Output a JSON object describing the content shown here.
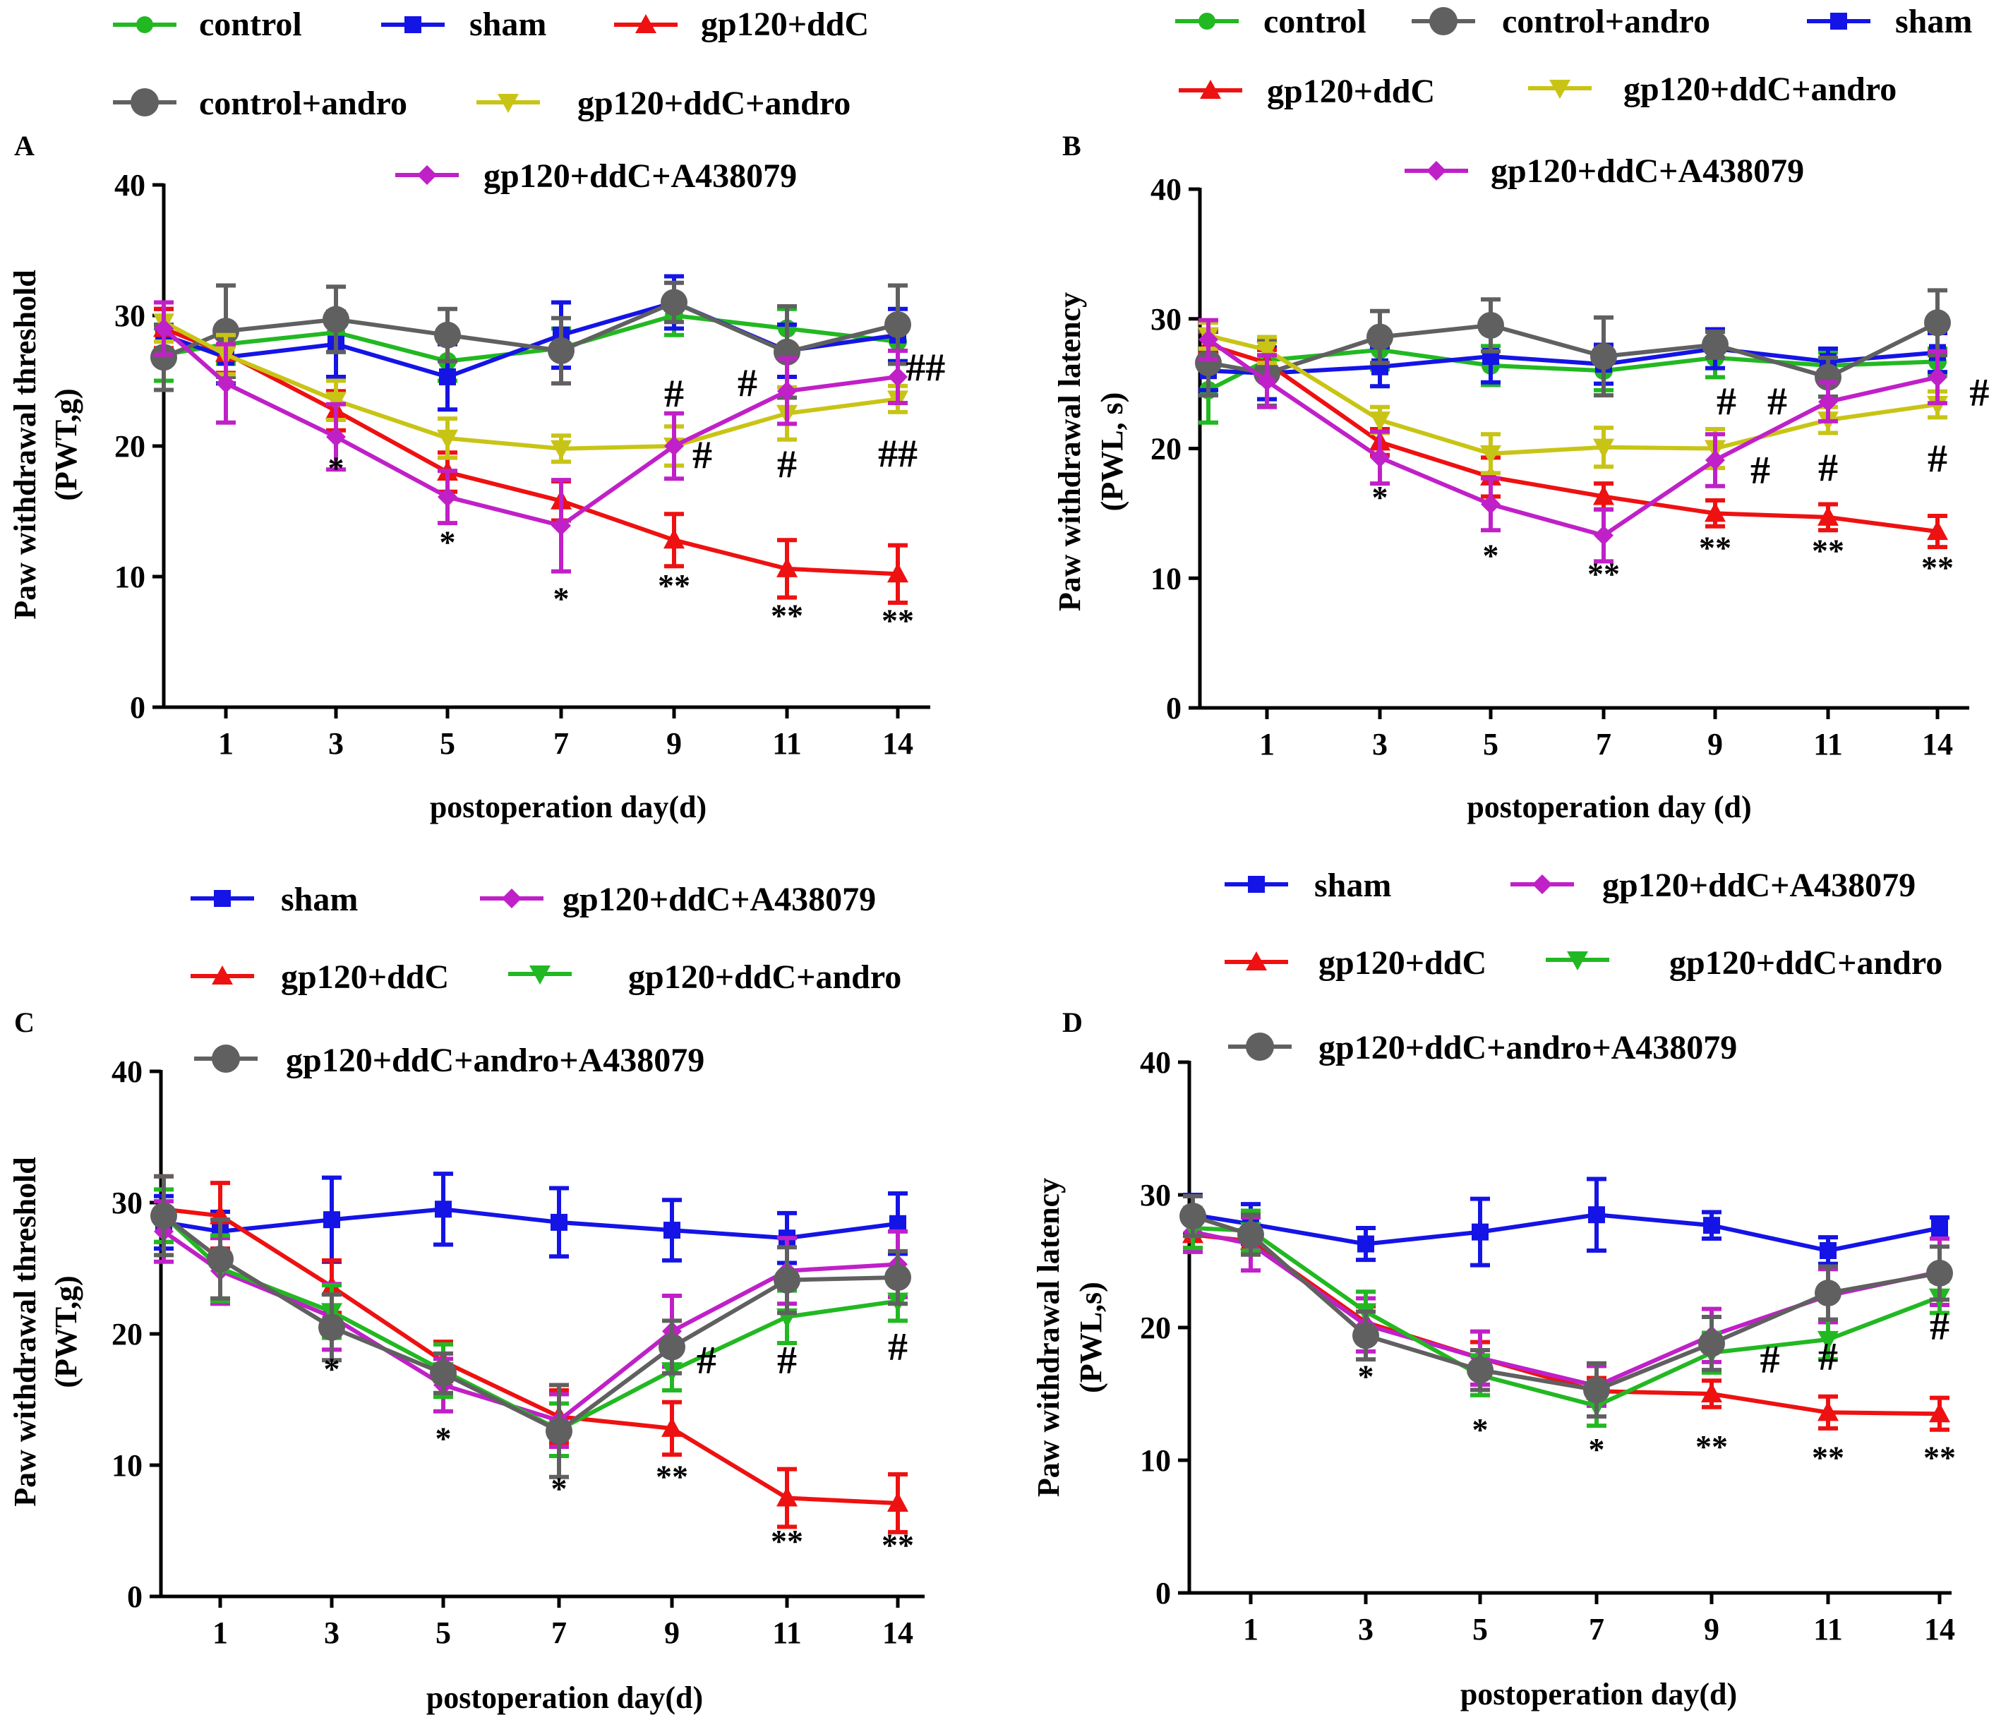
{
  "figure": {
    "colors": {
      "control": "#22b822",
      "sham": "#1414e6",
      "gp120+ddC": "#ee1111",
      "control+andro": "#606060",
      "gp120+ddC+andro": "#c8c416",
      "gp120+ddC+A438079": "#c020c8",
      "gp120+ddC+andro (C/D)": "#22b822",
      "gp120+ddC+andro+A438079": "#606060"
    }
  },
  "chart_data": [
    {
      "panel": "A",
      "type": "line",
      "title": "",
      "xlabel": "postoperation day(d)",
      "ylabel": "Paw withdrawal threshold",
      "ylabel2": "(PWT,g)",
      "x": [
        0,
        1,
        3,
        5,
        7,
        9,
        11,
        14
      ],
      "x_ticks": [
        "1",
        "3",
        "5",
        "7",
        "9",
        "11",
        "14"
      ],
      "ylim": [
        0,
        40
      ],
      "y_ticks": [
        "0",
        "10",
        "20",
        "30",
        "40"
      ],
      "legend": [
        "control",
        "sham",
        "gp120+ddC",
        "control+andro",
        "gp120+ddC+andro",
        "gp120+ddC+A438079"
      ],
      "series": [
        {
          "name": "control",
          "marker": "circle",
          "color": "#22b822",
          "values": [
            27,
            27.8,
            28.7,
            26.5,
            27.5,
            30,
            29,
            28
          ],
          "err": [
            2,
            1.5,
            1.5,
            1.5,
            1.5,
            1.5,
            1.5,
            1.5
          ]
        },
        {
          "name": "sham",
          "marker": "square",
          "color": "#1414e6",
          "values": [
            28.5,
            26.8,
            27.8,
            25.3,
            28.5,
            31,
            27.3,
            28.5
          ],
          "err": [
            2,
            2,
            2.5,
            2.5,
            2.5,
            2,
            2,
            2
          ]
        },
        {
          "name": "gp120+ddC",
          "marker": "triangle-up",
          "color": "#ee1111",
          "values": [
            29,
            27.1,
            22.7,
            18,
            15.8,
            12.8,
            10.6,
            10.2
          ],
          "err": [
            1.5,
            1.5,
            1.5,
            1.5,
            1.5,
            2,
            2.2,
            2.2
          ]
        },
        {
          "name": "control+andro",
          "marker": "circle-big",
          "color": "#606060",
          "values": [
            26.8,
            28.8,
            29.7,
            28.5,
            27.3,
            31,
            27.2,
            29.3
          ],
          "err": [
            2.5,
            3.5,
            2.5,
            2,
            2.5,
            1.5,
            3.5,
            3
          ]
        },
        {
          "name": "gp120+ddC+andro",
          "marker": "triangle-down",
          "color": "#c8c416",
          "values": [
            29.5,
            27,
            23.5,
            20.6,
            19.8,
            20,
            22.5,
            23.6
          ],
          "err": [
            1.5,
            1.5,
            1.5,
            1.5,
            1,
            1.5,
            2,
            1
          ]
        },
        {
          "name": "gp120+ddC+A438079",
          "marker": "diamond",
          "color": "#c020c8",
          "values": [
            29,
            24.8,
            20.7,
            16.1,
            13.9,
            20,
            24.2,
            25.3
          ],
          "err": [
            2,
            3,
            2.5,
            2,
            3.5,
            2.5,
            2.5,
            2
          ]
        }
      ],
      "annotations": [
        {
          "x": 3,
          "y": 17.5,
          "text": "*"
        },
        {
          "x": 5,
          "y": 11.8,
          "text": "*"
        },
        {
          "x": 7,
          "y": 7.5,
          "text": "*"
        },
        {
          "x": 9,
          "y": 8.5,
          "text": "**"
        },
        {
          "x": 11,
          "y": 6.2,
          "text": "**"
        },
        {
          "x": 14,
          "y": 5.8,
          "text": "**"
        },
        {
          "x": 9,
          "y": 23.0,
          "text": "#"
        },
        {
          "x": 9.5,
          "y": 18.3,
          "text": "#"
        },
        {
          "x": 10.3,
          "y": 23.8,
          "text": "#"
        },
        {
          "x": 11,
          "y": 17.6,
          "text": "#"
        },
        {
          "x": 14,
          "y": 18.4,
          "text": "##"
        },
        {
          "x": 14.75,
          "y": 25.0,
          "text": "##"
        }
      ]
    },
    {
      "panel": "B",
      "type": "line",
      "title": "",
      "xlabel": "postoperation day (d)",
      "ylabel": "Paw withdrawal latency",
      "ylabel2": "(PWL, s)",
      "x": [
        0,
        1,
        3,
        5,
        7,
        9,
        11,
        14
      ],
      "x_ticks": [
        "1",
        "3",
        "5",
        "7",
        "9",
        "11",
        "14"
      ],
      "ylim": [
        0,
        40
      ],
      "y_ticks": [
        "0",
        "10",
        "20",
        "30",
        "40"
      ],
      "legend": [
        "control",
        "control+andro",
        "sham",
        "gp120+ddC",
        "gp120+ddC+andro",
        "gp120+ddC+A438079"
      ],
      "series": [
        {
          "name": "control",
          "marker": "circle",
          "color": "#22b822",
          "values": [
            24.5,
            26.8,
            27.6,
            26.4,
            26,
            27,
            26.4,
            26.7
          ],
          "err": [
            2.5,
            1.5,
            1.5,
            1.5,
            1.5,
            1.5,
            1,
            1
          ]
        },
        {
          "name": "sham",
          "marker": "square",
          "color": "#1414e6",
          "values": [
            26,
            25.8,
            26.3,
            27.1,
            26.5,
            27.7,
            26.7,
            27.4
          ],
          "err": [
            1.5,
            2,
            1.5,
            2,
            1.5,
            1.5,
            1,
            1.5
          ]
        },
        {
          "name": "gp120+ddC",
          "marker": "triangle-up",
          "color": "#ee1111",
          "values": [
            28,
            26.6,
            20.5,
            17.8,
            16.3,
            15,
            14.7,
            13.6
          ],
          "err": [
            1,
            1,
            1,
            1.5,
            1,
            1,
            1,
            1.2
          ]
        },
        {
          "name": "control+andro",
          "marker": "circle-big",
          "color": "#606060",
          "values": [
            26.6,
            25.8,
            28.6,
            29.5,
            27.1,
            28,
            25.5,
            29.7
          ],
          "err": [
            2.5,
            2.5,
            2,
            2,
            3,
            1,
            1.5,
            2.5
          ]
        },
        {
          "name": "gp120+ddC+andro",
          "marker": "triangle-down",
          "color": "#c8c416",
          "values": [
            28.7,
            27.6,
            22.2,
            19.6,
            20.1,
            20,
            22.2,
            23.4
          ],
          "err": [
            1,
            1,
            1,
            1.5,
            1.5,
            1.5,
            1,
            1
          ]
        },
        {
          "name": "gp120+ddC+A438079",
          "marker": "diamond",
          "color": "#c020c8",
          "values": [
            28.4,
            25.2,
            19.3,
            15.7,
            13.3,
            19.1,
            23.6,
            25.5
          ],
          "err": [
            1.5,
            2,
            2,
            2,
            2,
            2,
            1.5,
            2
          ]
        }
      ],
      "annotations": [
        {
          "x": 3,
          "y": 15.4,
          "text": "*"
        },
        {
          "x": 5,
          "y": 10.9,
          "text": "*"
        },
        {
          "x": 7,
          "y": 9.5,
          "text": "**"
        },
        {
          "x": 9,
          "y": 11.5,
          "text": "**"
        },
        {
          "x": 11,
          "y": 11.3,
          "text": "**"
        },
        {
          "x": 14,
          "y": 10.0,
          "text": "**"
        },
        {
          "x": 9.2,
          "y": 22.6,
          "text": "#"
        },
        {
          "x": 9.8,
          "y": 17.3,
          "text": "#"
        },
        {
          "x": 10.1,
          "y": 22.6,
          "text": "#"
        },
        {
          "x": 11,
          "y": 17.5,
          "text": "#"
        },
        {
          "x": 14,
          "y": 18.2,
          "text": "#"
        },
        {
          "x": 15.15,
          "y": 23.3,
          "text": "#"
        }
      ]
    },
    {
      "panel": "C",
      "type": "line",
      "title": "",
      "xlabel": "postoperation day(d)",
      "ylabel": "Paw withdrawal threshold",
      "ylabel2": "(PWT,g)",
      "x": [
        0,
        1,
        3,
        5,
        7,
        9,
        11,
        14
      ],
      "x_ticks": [
        "1",
        "3",
        "5",
        "7",
        "9",
        "11",
        "14"
      ],
      "ylim": [
        0,
        40
      ],
      "y_ticks": [
        "0",
        "10",
        "20",
        "30",
        "40"
      ],
      "legend": [
        "sham",
        "gp120+ddC+A438079",
        "gp120+ddC",
        "gp120+ddC+andro",
        "gp120+ddC+andro+A438079"
      ],
      "series": [
        {
          "name": "sham",
          "marker": "square",
          "color": "#1414e6",
          "values": [
            28.5,
            27.8,
            28.7,
            29.5,
            28.5,
            27.9,
            27.3,
            28.4
          ],
          "err": [
            2,
            1.5,
            3.2,
            2.7,
            2.6,
            2.3,
            1.9,
            2.3
          ]
        },
        {
          "name": "gp120+ddC",
          "marker": "triangle-up",
          "color": "#ee1111",
          "values": [
            29.5,
            29,
            23.6,
            17.9,
            13.7,
            12.8,
            7.5,
            7.1
          ],
          "err": [
            2.5,
            2.5,
            2,
            1.5,
            2,
            2,
            2.2,
            2.2
          ]
        },
        {
          "name": "gp120+ddC+A438079",
          "marker": "diamond",
          "color": "#c020c8",
          "values": [
            27.8,
            24.8,
            21.3,
            16.1,
            13.4,
            20.2,
            24.8,
            25.3
          ],
          "err": [
            2.3,
            2.5,
            2.5,
            2,
            2,
            2.7,
            2.5,
            2.5
          ]
        },
        {
          "name": "gp120+ddC+andro",
          "marker": "triangle-down",
          "color": "#22b822",
          "values": [
            29,
            25,
            21.7,
            17.2,
            12.7,
            17.2,
            21.3,
            22.5
          ],
          "err": [
            2,
            2.5,
            2,
            2,
            2,
            1.5,
            2,
            1.5
          ]
        },
        {
          "name": "gp120+ddC+andro+A438079",
          "marker": "circle-big",
          "color": "#606060",
          "values": [
            29,
            25.7,
            20.5,
            17,
            12.6,
            19,
            24.1,
            24.3
          ],
          "err": [
            3,
            3,
            2.5,
            1.5,
            3.5,
            2,
            2.5,
            2
          ]
        }
      ],
      "annotations": [
        {
          "x": 3,
          "y": 16.5,
          "text": "*"
        },
        {
          "x": 5,
          "y": 11.2,
          "text": "*"
        },
        {
          "x": 7,
          "y": 7.4,
          "text": "*"
        },
        {
          "x": 9,
          "y": 8.3,
          "text": "**"
        },
        {
          "x": 11,
          "y": 3.4,
          "text": "**"
        },
        {
          "x": 14,
          "y": 3.1,
          "text": "**"
        },
        {
          "x": 9.6,
          "y": 17.0,
          "text": "#"
        },
        {
          "x": 11,
          "y": 17.0,
          "text": "#"
        },
        {
          "x": 14,
          "y": 18.0,
          "text": "#"
        }
      ]
    },
    {
      "panel": "D",
      "type": "line",
      "title": "",
      "xlabel": "postoperation day(d)",
      "ylabel": "Paw withdrawal latency",
      "ylabel2": "(PWL,s)",
      "x": [
        0,
        1,
        3,
        5,
        7,
        9,
        11,
        14
      ],
      "x_ticks": [
        "1",
        "3",
        "5",
        "7",
        "9",
        "11",
        "14"
      ],
      "ylim": [
        0,
        40
      ],
      "y_ticks": [
        "0",
        "10",
        "20",
        "30",
        "40"
      ],
      "legend": [
        "sham",
        "gp120+ddC+A438079",
        "gp120+ddC",
        "gp120+ddC+andro",
        "gp120+ddC+andro+A438079"
      ],
      "series": [
        {
          "name": "sham",
          "marker": "square",
          "color": "#1414e6",
          "values": [
            28.5,
            27.8,
            26.3,
            27.2,
            28.5,
            27.7,
            25.8,
            27.5
          ],
          "err": [
            1.5,
            1.5,
            1.2,
            2.5,
            2.7,
            1,
            1,
            0.8
          ]
        },
        {
          "name": "gp120+ddC",
          "marker": "triangle-up",
          "color": "#ee1111",
          "values": [
            27,
            26.5,
            20.4,
            17.7,
            15.2,
            15,
            13.6,
            13.5
          ],
          "err": [
            1,
            1,
            1.2,
            1.2,
            1,
            1,
            1.2,
            1.2
          ]
        },
        {
          "name": "gp120+ddC+A438079",
          "marker": "diamond",
          "color": "#c020c8",
          "values": [
            27.2,
            26.3,
            20.2,
            17.7,
            15.6,
            19.4,
            22.4,
            24.2
          ],
          "err": [
            1.5,
            2,
            2,
            2,
            1.5,
            2,
            2,
            2.5
          ]
        },
        {
          "name": "gp120+ddC+andro",
          "marker": "triangle-down",
          "color": "#22b822",
          "values": [
            27.5,
            27.3,
            21.2,
            16.4,
            14.1,
            18.1,
            19.1,
            22.3
          ],
          "err": [
            1.5,
            1.5,
            1.5,
            1.5,
            1.5,
            1.5,
            1.5,
            1.2
          ]
        },
        {
          "name": "gp120+ddC+andro+A438079",
          "marker": "circle-big",
          "color": "#606060",
          "values": [
            28.4,
            27,
            19.4,
            16.8,
            15.3,
            18.8,
            22.6,
            24.1
          ],
          "err": [
            1.5,
            1.5,
            1.8,
            1.5,
            2,
            2,
            2,
            2
          ]
        }
      ],
      "annotations": [
        {
          "x": 3,
          "y": 15.5,
          "text": "*"
        },
        {
          "x": 5,
          "y": 11.5,
          "text": "*"
        },
        {
          "x": 7,
          "y": 10.0,
          "text": "*"
        },
        {
          "x": 9,
          "y": 10.2,
          "text": "**"
        },
        {
          "x": 11,
          "y": 9.4,
          "text": "**"
        },
        {
          "x": 14,
          "y": 9.4,
          "text": "**"
        },
        {
          "x": 10,
          "y": 16.6,
          "text": "#"
        },
        {
          "x": 11,
          "y": 16.8,
          "text": "#"
        },
        {
          "x": 14,
          "y": 19.1,
          "text": "#"
        }
      ]
    }
  ]
}
